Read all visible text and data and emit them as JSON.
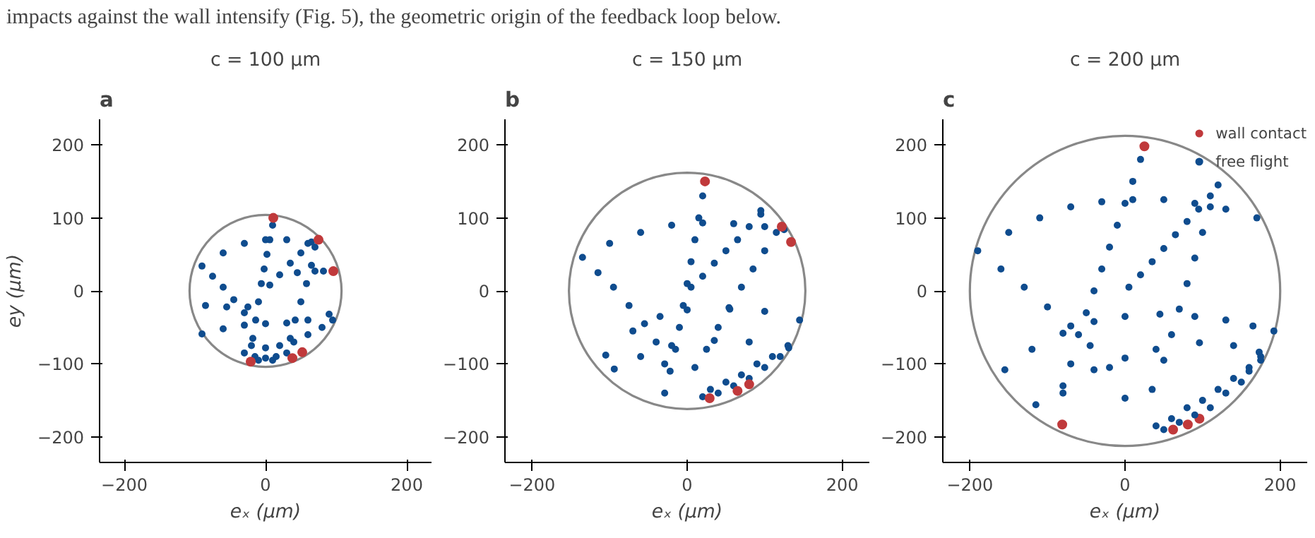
{
  "chart_data": [
    {
      "type": "scatter",
      "title": "c = 100 μm",
      "xlabel": "eₓ (μm)",
      "ylabel": "ey (μm)",
      "annotations": [
        "impacts against the wall intensify (Fig. 5), the geometric origin of the feedback loop below.",
        "a"
      ],
      "xlim": [
        -235,
        235
      ],
      "ylim": [
        -235,
        235
      ],
      "xticks": [
        -200,
        0,
        200
      ],
      "yticks": [
        -200,
        -100,
        0,
        100,
        200
      ],
      "grid": false,
      "legend": false,
      "marker": "circle",
      "series": [
        {
          "color": "#0f4c8e",
          "x": [
            6,
            20,
            35,
            50,
            65,
            -90,
            -60,
            -30,
            0,
            30,
            60,
            10,
            6,
            2,
            -2,
            -6,
            -10,
            -14,
            -18,
            -75,
            -60,
            -45,
            -30,
            45,
            70,
            82,
            70,
            65,
            58,
            50,
            42,
            35,
            -90,
            -60,
            -30,
            0,
            30,
            60,
            90,
            -85,
            -55,
            -25,
            -30,
            -15,
            0,
            15,
            30,
            -20,
            0,
            20,
            40,
            60,
            80,
            95,
            -10,
            10
          ],
          "values": [
            8,
            22,
            38,
            52,
            67,
            34,
            52,
            65,
            70,
            70,
            65,
            90,
            70,
            50,
            30,
            10,
            -15,
            -40,
            -65,
            20,
            5,
            -12,
            -30,
            25,
            27,
            27,
            60,
            35,
            10,
            -15,
            -40,
            -65,
            -59,
            -52,
            -47,
            -45,
            -44,
            -40,
            -32,
            -20,
            -22,
            -22,
            -85,
            -90,
            -92,
            -90,
            -85,
            -75,
            -78,
            -75,
            -70,
            -60,
            -50,
            -40,
            -95,
            -95
          ]
        },
        {
          "color": "#c0393b",
          "x": [
            11,
            75,
            96,
            -21,
            38,
            52
          ],
          "values": [
            100,
            70,
            27,
            -97,
            -92,
            -84
          ]
        }
      ]
    },
    {
      "type": "scatter",
      "title": "c = 150 μm",
      "xlabel": "eₓ (μm)",
      "annotations": [
        "b"
      ],
      "xlim": [
        -235,
        235
      ],
      "ylim": [
        -235,
        235
      ],
      "xticks": [
        -200,
        0,
        200
      ],
      "yticks": [
        -200,
        -100,
        0,
        100,
        200
      ],
      "grid": false,
      "legend": false,
      "marker": "circle",
      "series": [
        {
          "color": "#0f4c8e",
          "x": [
            5,
            20,
            35,
            50,
            65,
            80,
            95,
            95,
            -135,
            -100,
            -60,
            -20,
            20,
            60,
            100,
            125,
            20,
            15,
            10,
            5,
            0,
            -5,
            -10,
            -15,
            -22,
            -29,
            -115,
            -95,
            -75,
            -55,
            -40,
            -29,
            115,
            100,
            85,
            70,
            55,
            40,
            25,
            10,
            -105,
            -70,
            -35,
            0,
            54,
            100,
            145,
            -94,
            -60,
            -20,
            35,
            80,
            131,
            20,
            40,
            60,
            80,
            100,
            120,
            30,
            50,
            70,
            90,
            110,
            130
          ],
          "values": [
            5,
            20,
            38,
            55,
            70,
            88,
            105,
            110,
            46,
            65,
            80,
            90,
            93,
            92,
            88,
            84,
            130,
            100,
            70,
            40,
            10,
            -20,
            -50,
            -80,
            -110,
            -140,
            25,
            5,
            -20,
            -45,
            -70,
            -100,
            80,
            55,
            30,
            5,
            -25,
            -50,
            -80,
            -105,
            -88,
            -55,
            -35,
            -26,
            -23,
            -28,
            -40,
            -107,
            -90,
            -75,
            -68,
            -70,
            -78,
            -145,
            -140,
            -130,
            -120,
            -105,
            -90,
            -135,
            -125,
            -115,
            -100,
            -90,
            -75
          ]
        },
        {
          "color": "#c0393b",
          "x": [
            23,
            122,
            134,
            29,
            65,
            80
          ],
          "values": [
            150,
            88,
            67,
            -147,
            -137,
            -128
          ]
        }
      ]
    },
    {
      "type": "scatter",
      "title": "c = 200 μm",
      "xlabel": "eₓ (μm)",
      "annotations": [
        "c"
      ],
      "xlim": [
        -235,
        235
      ],
      "ylim": [
        -235,
        235
      ],
      "xticks": [
        -200,
        0,
        200
      ],
      "yticks": [
        -200,
        -100,
        0,
        100,
        200
      ],
      "grid": false,
      "legend": "top right",
      "marker": "circle",
      "series": [
        {
          "name": "wall contact",
          "color": "#c0393b",
          "x": [
            25,
            -81,
            62,
            81,
            96
          ],
          "values": [
            198,
            -183,
            -190,
            -183,
            -175
          ]
        },
        {
          "name": "free flight",
          "color": "#0f4c8e",
          "x": [
            5,
            20,
            35,
            50,
            65,
            80,
            95,
            110,
            120,
            -190,
            -150,
            -110,
            -70,
            -30,
            10,
            50,
            90,
            130,
            170,
            -160,
            -130,
            -100,
            -70,
            -45,
            -20,
            0,
            20,
            10,
            0,
            -10,
            -20,
            -30,
            -40,
            -50,
            -60,
            -70,
            -80,
            110,
            100,
            90,
            80,
            70,
            60,
            50,
            35,
            -155,
            -120,
            -80,
            -40,
            0,
            45,
            90,
            130,
            165,
            192,
            -115,
            -80,
            -40,
            0,
            40,
            96,
            140,
            173,
            40,
            60,
            80,
            100,
            120,
            140,
            160,
            175,
            50,
            70,
            90,
            110,
            130,
            150,
            160,
            175
          ],
          "values": [
            5,
            22,
            40,
            58,
            77,
            95,
            112,
            130,
            145,
            55,
            80,
            100,
            115,
            122,
            125,
            125,
            120,
            112,
            100,
            30,
            5,
            -22,
            -48,
            -75,
            -105,
            -147,
            180,
            150,
            120,
            90,
            60,
            30,
            0,
            -30,
            -60,
            -100,
            -140,
            115,
            80,
            45,
            10,
            -25,
            -60,
            -95,
            -135,
            -108,
            -80,
            -58,
            -42,
            -35,
            -32,
            -35,
            -40,
            -48,
            -55,
            -156,
            -130,
            -108,
            -92,
            -80,
            -71,
            -75,
            -84,
            -185,
            -175,
            -160,
            -150,
            -135,
            -120,
            -105,
            -90,
            -190,
            -180,
            -170,
            -160,
            -140,
            -125,
            -110,
            -95
          ]
        }
      ]
    }
  ]
}
